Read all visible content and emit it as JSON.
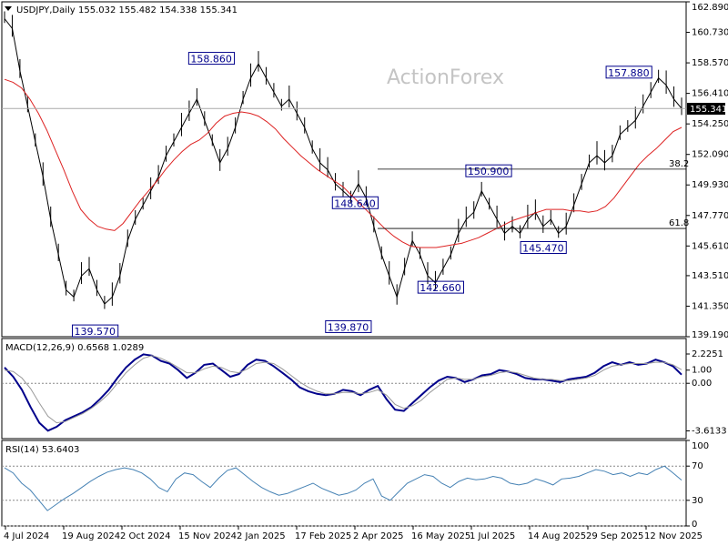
{
  "header": {
    "symbol": "USDJPY,Daily",
    "ohlc": "155.032 155.482 154.338 155.341",
    "watermark": "ActionForex"
  },
  "chart_data": [
    {
      "type": "candlestick",
      "title": "USDJPY,Daily",
      "ylim": [
        139.19,
        162.89
      ],
      "y_ticks": [
        "162.890",
        "160.730",
        "158.570",
        "156.410",
        "154.250",
        "152.090",
        "149.930",
        "147.770",
        "145.610",
        "143.510",
        "141.350",
        "139.190"
      ],
      "current_price": "155.341",
      "x_ticks": [
        "4 Jul 2024",
        "19 Aug 2024",
        "2 Oct 2024",
        "15 Nov 2024",
        "2 Jan 2025",
        "17 Feb 2025",
        "2 Apr 2025",
        "16 May 2025",
        "1 Jul 2025",
        "14 Aug 2025",
        "29 Sep 2025",
        "12 Nov 2025"
      ],
      "series": [
        {
          "name": "",
          "color": "#000000",
          "values": [
            161.7,
            161.0,
            158.0,
            155.5,
            153.0,
            150.5,
            147.5,
            145.0,
            142.5,
            142.0,
            143.5,
            144.0,
            142.5,
            141.5,
            142.0,
            143.5,
            146.0,
            147.5,
            148.5,
            149.5,
            150.5,
            152.0,
            153.0,
            154.0,
            155.0,
            156.0,
            154.5,
            153.0,
            151.5,
            152.5,
            154.0,
            156.0,
            157.5,
            158.5,
            157.5,
            156.5,
            155.5,
            156.0,
            155.0,
            154.0,
            152.5,
            151.5,
            151.0,
            150.0,
            149.5,
            149.0,
            150.0,
            149.0,
            147.0,
            145.0,
            143.5,
            142.0,
            144.0,
            146.0,
            145.0,
            143.5,
            143.0,
            144.0,
            145.0,
            146.5,
            147.5,
            148.0,
            149.5,
            148.5,
            147.5,
            146.5,
            147.0,
            146.5,
            147.5,
            148.0,
            147.0,
            147.5,
            146.5,
            147.0,
            148.5,
            150.0,
            151.5,
            152.0,
            151.5,
            152.0,
            153.5,
            154.0,
            154.5,
            155.5,
            156.5,
            157.5,
            157.0,
            156.0,
            155.341
          ]
        },
        {
          "name": "",
          "color": "#dd2222",
          "values": [
            157.4,
            157.2,
            156.8,
            156.0,
            155.0,
            153.8,
            152.4,
            151.0,
            149.5,
            148.2,
            147.5,
            147.0,
            146.8,
            146.7,
            147.2,
            148.0,
            148.8,
            149.5,
            150.2,
            151.0,
            151.7,
            152.3,
            152.8,
            153.1,
            153.6,
            154.3,
            154.8,
            155.0,
            155.1,
            155.0,
            154.8,
            154.4,
            153.9,
            153.2,
            152.6,
            152.0,
            151.5,
            151.0,
            150.6,
            150.2,
            149.8,
            149.2,
            148.6,
            148.0,
            147.4,
            146.8,
            146.3,
            145.9,
            145.6,
            145.5,
            145.5,
            145.5,
            145.6,
            145.7,
            145.8,
            146.0,
            146.2,
            146.5,
            146.8,
            147.1,
            147.4,
            147.6,
            147.8,
            148.0,
            148.2,
            148.2,
            148.2,
            148.1,
            148.1,
            148.0,
            148.1,
            148.4,
            149.0,
            149.8,
            150.6,
            151.4,
            152.0,
            152.5,
            153.1,
            153.7,
            154.0
          ]
        }
      ],
      "annotations": [
        {
          "label": "158.860",
          "x": 0.305,
          "y": 158.86
        },
        {
          "label": "157.880",
          "x": 0.915,
          "y": 157.88
        },
        {
          "label": "150.900",
          "x": 0.71,
          "y": 150.9
        },
        {
          "label": "148.640",
          "x": 0.515,
          "y": 148.64
        },
        {
          "label": "145.470",
          "x": 0.79,
          "y": 145.47
        },
        {
          "label": "142.660",
          "x": 0.64,
          "y": 142.66
        },
        {
          "label": "139.870",
          "x": 0.505,
          "y": 139.87
        },
        {
          "label": "139.570",
          "x": 0.135,
          "y": 139.57
        }
      ],
      "fib_levels": [
        {
          "label": "38.2",
          "y": 151.05
        },
        {
          "label": "61.8",
          "y": 146.85
        }
      ]
    },
    {
      "type": "line",
      "title": "MACD(12,26,9) 0.6568 1.0289",
      "ylim": [
        -4.2,
        3.4
      ],
      "y_ticks": [
        "2.2251",
        "1.00",
        "0.00",
        "-3.6133"
      ],
      "series": [
        {
          "name": "",
          "color": "#00008b",
          "values": [
            1.2,
            0.5,
            -0.5,
            -1.8,
            -3.0,
            -3.6,
            -3.3,
            -2.8,
            -2.5,
            -2.2,
            -1.8,
            -1.2,
            -0.5,
            0.4,
            1.2,
            1.8,
            2.2,
            2.1,
            1.7,
            1.5,
            1.0,
            0.4,
            0.8,
            1.4,
            1.5,
            1.0,
            0.5,
            0.7,
            1.4,
            1.8,
            1.7,
            1.3,
            0.8,
            0.3,
            -0.3,
            -0.6,
            -0.8,
            -0.9,
            -0.8,
            -0.5,
            -0.6,
            -0.9,
            -0.5,
            -0.2,
            -1.2,
            -2.0,
            -2.1,
            -1.5,
            -0.9,
            -0.3,
            0.2,
            0.5,
            0.4,
            0.1,
            0.3,
            0.6,
            0.7,
            1.0,
            0.9,
            0.7,
            0.4,
            0.3,
            0.3,
            0.2,
            0.1,
            0.3,
            0.4,
            0.5,
            0.8,
            1.3,
            1.6,
            1.4,
            1.6,
            1.4,
            1.5,
            1.8,
            1.6,
            1.3,
            0.6568
          ]
        },
        {
          "name": "",
          "color": "#999999",
          "values": [
            1.0,
            0.9,
            0.4,
            -0.4,
            -1.5,
            -2.5,
            -3.0,
            -2.9,
            -2.6,
            -2.3,
            -1.9,
            -1.4,
            -0.8,
            0.0,
            0.8,
            1.4,
            1.9,
            2.1,
            1.9,
            1.6,
            1.2,
            0.8,
            0.8,
            1.1,
            1.3,
            1.2,
            0.9,
            0.8,
            1.1,
            1.5,
            1.6,
            1.5,
            1.1,
            0.6,
            0.1,
            -0.3,
            -0.6,
            -0.8,
            -0.8,
            -0.7,
            -0.7,
            -0.8,
            -0.7,
            -0.5,
            -0.9,
            -1.6,
            -1.9,
            -1.7,
            -1.3,
            -0.7,
            -0.2,
            0.3,
            0.4,
            0.3,
            0.3,
            0.5,
            0.6,
            0.8,
            0.9,
            0.8,
            0.6,
            0.4,
            0.3,
            0.3,
            0.2,
            0.2,
            0.3,
            0.4,
            0.6,
            1.0,
            1.3,
            1.4,
            1.5,
            1.5,
            1.5,
            1.6,
            1.6,
            1.4,
            1.0289
          ]
        }
      ]
    },
    {
      "type": "line",
      "title": "RSI(14) 53.6403",
      "ylim": [
        0,
        100
      ],
      "y_ticks": [
        "100",
        "70",
        "30",
        "0"
      ],
      "series": [
        {
          "name": "",
          "color": "#4682b4",
          "values": [
            68,
            62,
            50,
            42,
            30,
            18,
            25,
            32,
            38,
            45,
            52,
            58,
            63,
            66,
            68,
            66,
            62,
            55,
            45,
            40,
            55,
            62,
            60,
            52,
            45,
            56,
            65,
            68,
            60,
            52,
            45,
            40,
            36,
            38,
            42,
            46,
            50,
            44,
            40,
            36,
            38,
            42,
            50,
            55,
            35,
            30,
            40,
            50,
            55,
            60,
            58,
            50,
            45,
            52,
            56,
            54,
            55,
            58,
            56,
            50,
            48,
            50,
            55,
            52,
            48,
            55,
            56,
            58,
            62,
            66,
            64,
            60,
            62,
            58,
            62,
            60,
            66,
            70,
            62,
            53.6403
          ]
        }
      ]
    }
  ]
}
